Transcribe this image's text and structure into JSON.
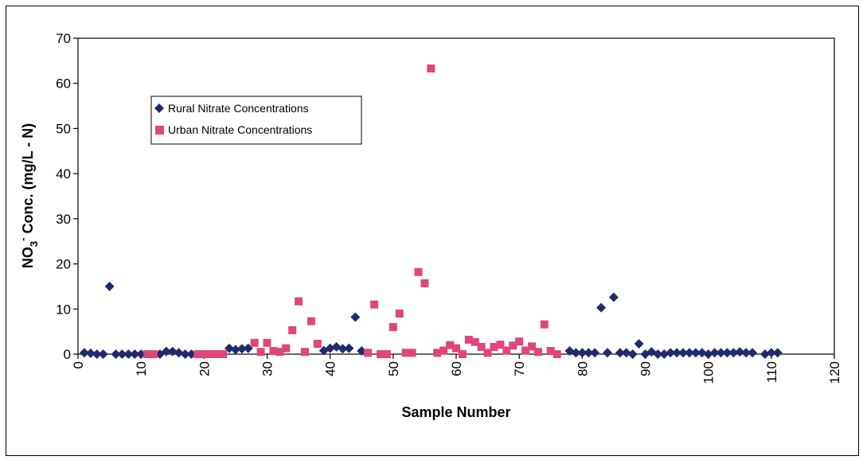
{
  "chart_data": {
    "type": "scatter",
    "xlabel": "Sample Number",
    "ylabel_main": "NO",
    "ylabel_sub": "3",
    "ylabel_sup": "-",
    "ylabel_rest": " Conc. (mg/L - N)",
    "xlim": [
      0,
      120
    ],
    "ylim": [
      0,
      70
    ],
    "xticks": [
      0,
      10,
      20,
      30,
      40,
      50,
      60,
      70,
      80,
      90,
      100,
      110,
      120
    ],
    "yticks": [
      0,
      10,
      20,
      30,
      40,
      50,
      60,
      70
    ],
    "grid": false,
    "legend_position": "upper-left",
    "series": [
      {
        "name": "Rural Nitrate Concentrations",
        "marker": "diamond",
        "color": "#1f2a6e",
        "points": [
          [
            1,
            0.3
          ],
          [
            2,
            0.2
          ],
          [
            3,
            0
          ],
          [
            4,
            0
          ],
          [
            5,
            15
          ],
          [
            6,
            0
          ],
          [
            7,
            0
          ],
          [
            8,
            0
          ],
          [
            9,
            0
          ],
          [
            10,
            0
          ],
          [
            13,
            0
          ],
          [
            14,
            0.6
          ],
          [
            15,
            0.6
          ],
          [
            16,
            0.3
          ],
          [
            17,
            0
          ],
          [
            18,
            0
          ],
          [
            24,
            1.3
          ],
          [
            25,
            1
          ],
          [
            26,
            1.2
          ],
          [
            27,
            1.3
          ],
          [
            39,
            0.8
          ],
          [
            40,
            1.3
          ],
          [
            41,
            1.6
          ],
          [
            42,
            1.2
          ],
          [
            43,
            1.3
          ],
          [
            44,
            8.2
          ],
          [
            45,
            0.7
          ],
          [
            78,
            0.7
          ],
          [
            79,
            0.3
          ],
          [
            80,
            0.3
          ],
          [
            81,
            0.3
          ],
          [
            82,
            0.3
          ],
          [
            83,
            10.3
          ],
          [
            84,
            0.3
          ],
          [
            85,
            12.6
          ],
          [
            86,
            0.3
          ],
          [
            87,
            0.3
          ],
          [
            88,
            0
          ],
          [
            89,
            2.3
          ],
          [
            90,
            0
          ],
          [
            91,
            0.5
          ],
          [
            92,
            0
          ],
          [
            93,
            0
          ],
          [
            94,
            0.3
          ],
          [
            95,
            0.3
          ],
          [
            96,
            0.3
          ],
          [
            97,
            0.3
          ],
          [
            98,
            0.3
          ],
          [
            99,
            0.3
          ],
          [
            100,
            0
          ],
          [
            101,
            0.3
          ],
          [
            102,
            0.3
          ],
          [
            103,
            0.3
          ],
          [
            104,
            0.3
          ],
          [
            105,
            0.5
          ],
          [
            106,
            0.3
          ],
          [
            107,
            0.3
          ],
          [
            109,
            0
          ],
          [
            110,
            0.3
          ],
          [
            111,
            0.3
          ]
        ]
      },
      {
        "name": "Urban Nitrate Concentrations",
        "marker": "square",
        "color": "#e0457b",
        "points": [
          [
            11,
            0
          ],
          [
            12,
            0
          ],
          [
            19,
            0
          ],
          [
            20,
            0
          ],
          [
            21,
            0
          ],
          [
            22,
            0
          ],
          [
            23,
            0
          ],
          [
            28,
            2.5
          ],
          [
            29,
            0.5
          ],
          [
            30,
            2.5
          ],
          [
            31,
            0.7
          ],
          [
            32,
            0.5
          ],
          [
            33,
            1.3
          ],
          [
            34,
            5.3
          ],
          [
            35,
            11.7
          ],
          [
            36,
            0.5
          ],
          [
            37,
            7.3
          ],
          [
            38,
            2.3
          ],
          [
            46,
            0.3
          ],
          [
            47,
            11
          ],
          [
            48,
            0
          ],
          [
            49,
            0
          ],
          [
            50,
            6
          ],
          [
            51,
            9
          ],
          [
            52,
            0.3
          ],
          [
            53,
            0.3
          ],
          [
            54,
            18.2
          ],
          [
            55,
            15.7
          ],
          [
            56,
            63.3
          ],
          [
            57,
            0.3
          ],
          [
            58,
            0.8
          ],
          [
            59,
            2
          ],
          [
            60,
            1.3
          ],
          [
            61,
            0
          ],
          [
            62,
            3.2
          ],
          [
            63,
            2.7
          ],
          [
            64,
            1.6
          ],
          [
            65,
            0.3
          ],
          [
            66,
            1.6
          ],
          [
            67,
            2.1
          ],
          [
            68,
            0.8
          ],
          [
            69,
            1.9
          ],
          [
            70,
            2.8
          ],
          [
            71,
            0.8
          ],
          [
            72,
            1.7
          ],
          [
            73,
            0.5
          ],
          [
            74,
            6.6
          ],
          [
            75,
            0.7
          ],
          [
            76,
            0
          ]
        ]
      }
    ]
  }
}
